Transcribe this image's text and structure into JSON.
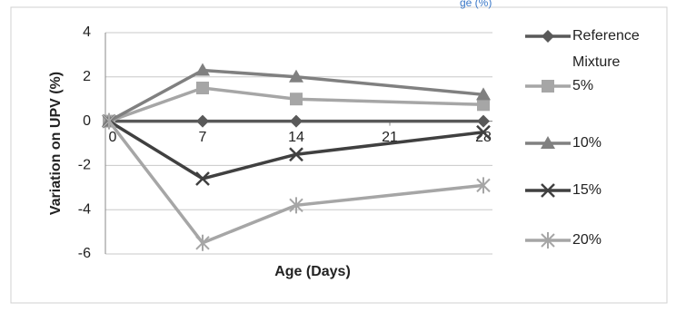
{
  "header_fragment": "ge (%)",
  "chart_data": {
    "type": "line",
    "x_label": "Age (Days)",
    "y_label": "Variation on UPV (%)",
    "x": [
      0,
      7,
      14,
      28
    ],
    "xlim": [
      0,
      28
    ],
    "xticks": [
      0,
      7,
      14,
      21,
      28
    ],
    "ylim": [
      -6,
      4
    ],
    "yticks": [
      -6,
      -4,
      -2,
      0,
      2,
      4
    ],
    "grid": true,
    "legend": "right",
    "series": [
      {
        "name": "Reference Mixture",
        "color": "#595959",
        "marker": "diamond",
        "values": [
          0,
          0,
          0,
          0
        ]
      },
      {
        "name": "5%",
        "color": "#a6a6a6",
        "marker": "square",
        "values": [
          0,
          1.5,
          1,
          0.75
        ]
      },
      {
        "name": "10%",
        "color": "#808080",
        "marker": "triangle",
        "values": [
          0,
          2.3,
          2,
          1.2
        ]
      },
      {
        "name": "15%",
        "color": "#404040",
        "marker": "x",
        "values": [
          0,
          -2.6,
          -1.5,
          -0.5
        ]
      },
      {
        "name": "20%",
        "color": "#a6a6a6",
        "marker": "star",
        "values": [
          0,
          -5.5,
          -3.8,
          -2.9
        ]
      }
    ]
  }
}
